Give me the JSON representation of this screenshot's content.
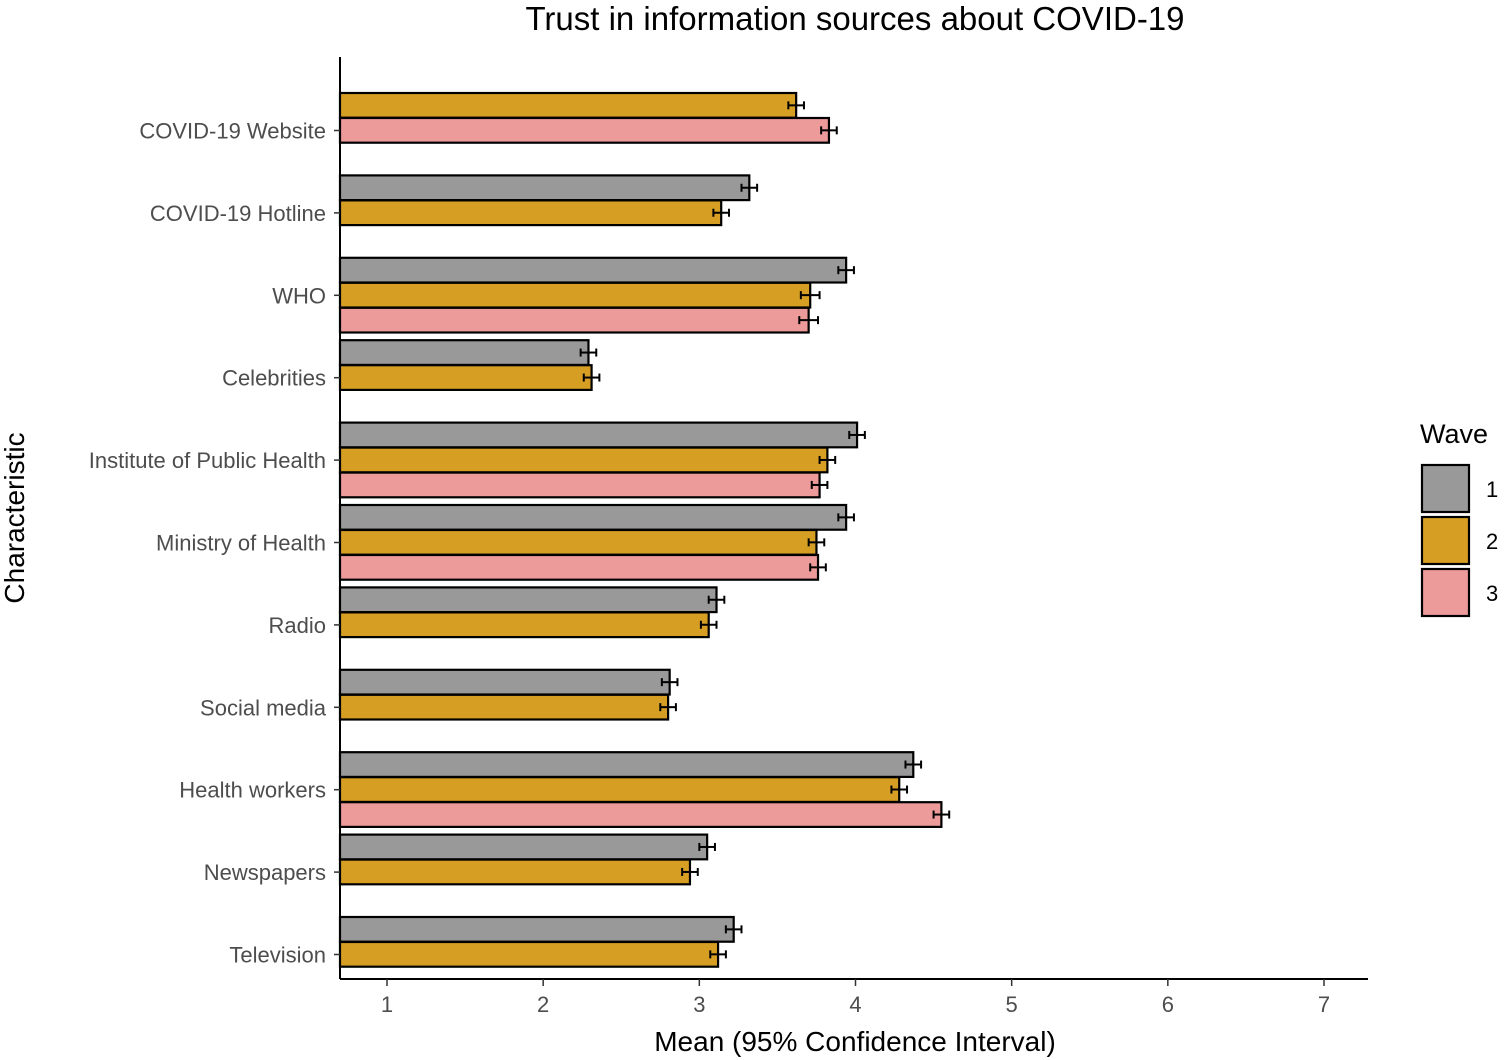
{
  "chart_data": {
    "type": "bar",
    "orientation": "horizontal",
    "title": "Trust in information sources about COVID-19",
    "xlabel": "Mean (95% Confidence Interval)",
    "ylabel": "Characteristic",
    "xlim": [
      0.7,
      7.3
    ],
    "xticks": [
      1,
      2,
      3,
      4,
      5,
      6,
      7
    ],
    "grid": false,
    "legend": {
      "title": "Wave",
      "placement": "right",
      "entries": [
        "1",
        "2",
        "3"
      ]
    },
    "series": [
      {
        "name": "1",
        "color": "#999999"
      },
      {
        "name": "2",
        "color": "#D69F24"
      },
      {
        "name": "3",
        "color": "#EC9A9A"
      }
    ],
    "categories": [
      {
        "label": "COVID-19 Website",
        "bars": [
          {
            "wave": "2",
            "value": 3.62,
            "ci": [
              3.57,
              3.67
            ]
          },
          {
            "wave": "3",
            "value": 3.83,
            "ci": [
              3.78,
              3.88
            ]
          }
        ]
      },
      {
        "label": "COVID-19 Hotline",
        "bars": [
          {
            "wave": "1",
            "value": 3.32,
            "ci": [
              3.27,
              3.37
            ]
          },
          {
            "wave": "2",
            "value": 3.14,
            "ci": [
              3.09,
              3.19
            ]
          }
        ]
      },
      {
        "label": "WHO",
        "bars": [
          {
            "wave": "1",
            "value": 3.94,
            "ci": [
              3.89,
              3.99
            ]
          },
          {
            "wave": "2",
            "value": 3.71,
            "ci": [
              3.65,
              3.77
            ]
          },
          {
            "wave": "3",
            "value": 3.7,
            "ci": [
              3.64,
              3.76
            ]
          }
        ]
      },
      {
        "label": "Celebrities",
        "bars": [
          {
            "wave": "1",
            "value": 2.29,
            "ci": [
              2.24,
              2.34
            ]
          },
          {
            "wave": "2",
            "value": 2.31,
            "ci": [
              2.26,
              2.36
            ]
          }
        ]
      },
      {
        "label": "Institute of Public Health",
        "bars": [
          {
            "wave": "1",
            "value": 4.01,
            "ci": [
              3.96,
              4.06
            ]
          },
          {
            "wave": "2",
            "value": 3.82,
            "ci": [
              3.77,
              3.87
            ]
          },
          {
            "wave": "3",
            "value": 3.77,
            "ci": [
              3.72,
              3.82
            ]
          }
        ]
      },
      {
        "label": "Ministry of Health",
        "bars": [
          {
            "wave": "1",
            "value": 3.94,
            "ci": [
              3.89,
              3.99
            ]
          },
          {
            "wave": "2",
            "value": 3.75,
            "ci": [
              3.7,
              3.8
            ]
          },
          {
            "wave": "3",
            "value": 3.76,
            "ci": [
              3.71,
              3.81
            ]
          }
        ]
      },
      {
        "label": "Radio",
        "bars": [
          {
            "wave": "1",
            "value": 3.11,
            "ci": [
              3.06,
              3.16
            ]
          },
          {
            "wave": "2",
            "value": 3.06,
            "ci": [
              3.01,
              3.11
            ]
          }
        ]
      },
      {
        "label": "Social media",
        "bars": [
          {
            "wave": "1",
            "value": 2.81,
            "ci": [
              2.76,
              2.86
            ]
          },
          {
            "wave": "2",
            "value": 2.8,
            "ci": [
              2.75,
              2.85
            ]
          }
        ]
      },
      {
        "label": "Health workers",
        "bars": [
          {
            "wave": "1",
            "value": 4.37,
            "ci": [
              4.32,
              4.42
            ]
          },
          {
            "wave": "2",
            "value": 4.28,
            "ci": [
              4.23,
              4.33
            ]
          },
          {
            "wave": "3",
            "value": 4.55,
            "ci": [
              4.5,
              4.6
            ]
          }
        ]
      },
      {
        "label": "Newspapers",
        "bars": [
          {
            "wave": "1",
            "value": 3.05,
            "ci": [
              3.0,
              3.1
            ]
          },
          {
            "wave": "2",
            "value": 2.94,
            "ci": [
              2.89,
              2.99
            ]
          }
        ]
      },
      {
        "label": "Television",
        "bars": [
          {
            "wave": "1",
            "value": 3.22,
            "ci": [
              3.17,
              3.27
            ]
          },
          {
            "wave": "2",
            "value": 3.12,
            "ci": [
              3.07,
              3.17
            ]
          }
        ]
      }
    ]
  }
}
